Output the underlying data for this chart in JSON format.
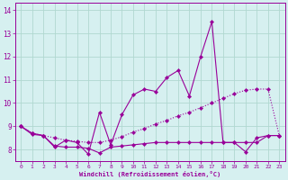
{
  "xlabel": "Windchill (Refroidissement éolien,°C)",
  "background_color": "#d6f0f0",
  "grid_color": "#b0d8d0",
  "line_color": "#990099",
  "xlim": [
    -0.5,
    23.5
  ],
  "ylim": [
    7.5,
    14.3
  ],
  "yticks": [
    8,
    9,
    10,
    11,
    12,
    13,
    14
  ],
  "xticks": [
    0,
    1,
    2,
    3,
    4,
    5,
    6,
    7,
    8,
    9,
    10,
    11,
    12,
    13,
    14,
    15,
    16,
    17,
    18,
    19,
    20,
    21,
    22,
    23
  ],
  "series1": [
    9.0,
    8.7,
    8.6,
    8.1,
    8.4,
    8.3,
    7.8,
    9.6,
    8.2,
    9.5,
    10.35,
    10.6,
    10.5,
    11.1,
    11.4,
    10.3,
    12.0,
    13.5,
    8.3,
    8.3,
    7.9,
    8.5,
    8.6,
    8.6
  ],
  "series2": [
    9.0,
    8.7,
    8.6,
    8.5,
    8.4,
    8.35,
    8.3,
    8.3,
    8.4,
    8.55,
    8.75,
    8.9,
    9.1,
    9.25,
    9.45,
    9.6,
    9.8,
    10.0,
    10.2,
    10.4,
    10.55,
    10.6,
    10.6,
    8.6
  ],
  "series3": [
    9.0,
    8.65,
    8.6,
    8.15,
    8.1,
    8.1,
    8.05,
    7.85,
    8.1,
    8.15,
    8.2,
    8.25,
    8.3,
    8.3,
    8.3,
    8.3,
    8.3,
    8.3,
    8.3,
    8.3,
    8.3,
    8.3,
    8.6,
    8.6
  ]
}
